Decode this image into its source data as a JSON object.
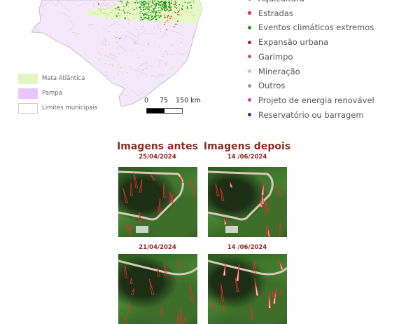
{
  "map": {
    "colors": {
      "mata_atlantica": "#e4f8c8",
      "pampa": "#f6e8fb",
      "limites": "#cdbcd0",
      "pampa_legend": "#e6c6fb"
    },
    "legend": [
      {
        "label": "Mata Atlântica",
        "color": "#dff6c2"
      },
      {
        "label": "Pampa",
        "color": "#e6c6fb"
      },
      {
        "label": "Limites municipais",
        "color": "#ffffff"
      }
    ],
    "scale_bar": {
      "ticks": [
        "0",
        "75",
        "150 km"
      ]
    }
  },
  "points_legend": [
    {
      "label": "Aquicultura",
      "color": "#3aa0e0"
    },
    {
      "label": "Estradas",
      "color": "#e0302a"
    },
    {
      "label": "Eventos climáticos extremos",
      "color": "#1a9a1a"
    },
    {
      "label": "Expansão urbana",
      "color": "#b02020"
    },
    {
      "label": "Garimpo",
      "color": "#d040b0"
    },
    {
      "label": "Mineração",
      "color": "#f4a8d8"
    },
    {
      "label": "Outros",
      "color": "#9a9a9a"
    },
    {
      "label": "Projeto de energia renovável",
      "color": "#c838c0"
    },
    {
      "label": "Reservatório ou barragem",
      "color": "#1a3a9a"
    }
  ],
  "comparison": {
    "before_title": "Imagens antes",
    "after_title": "Imagens depois",
    "pairs": [
      {
        "before_date": "25/04/2024",
        "after_date": "14 /06/2024"
      },
      {
        "before_date": "21/04/2024",
        "after_date": "14 /06/2024"
      }
    ]
  }
}
